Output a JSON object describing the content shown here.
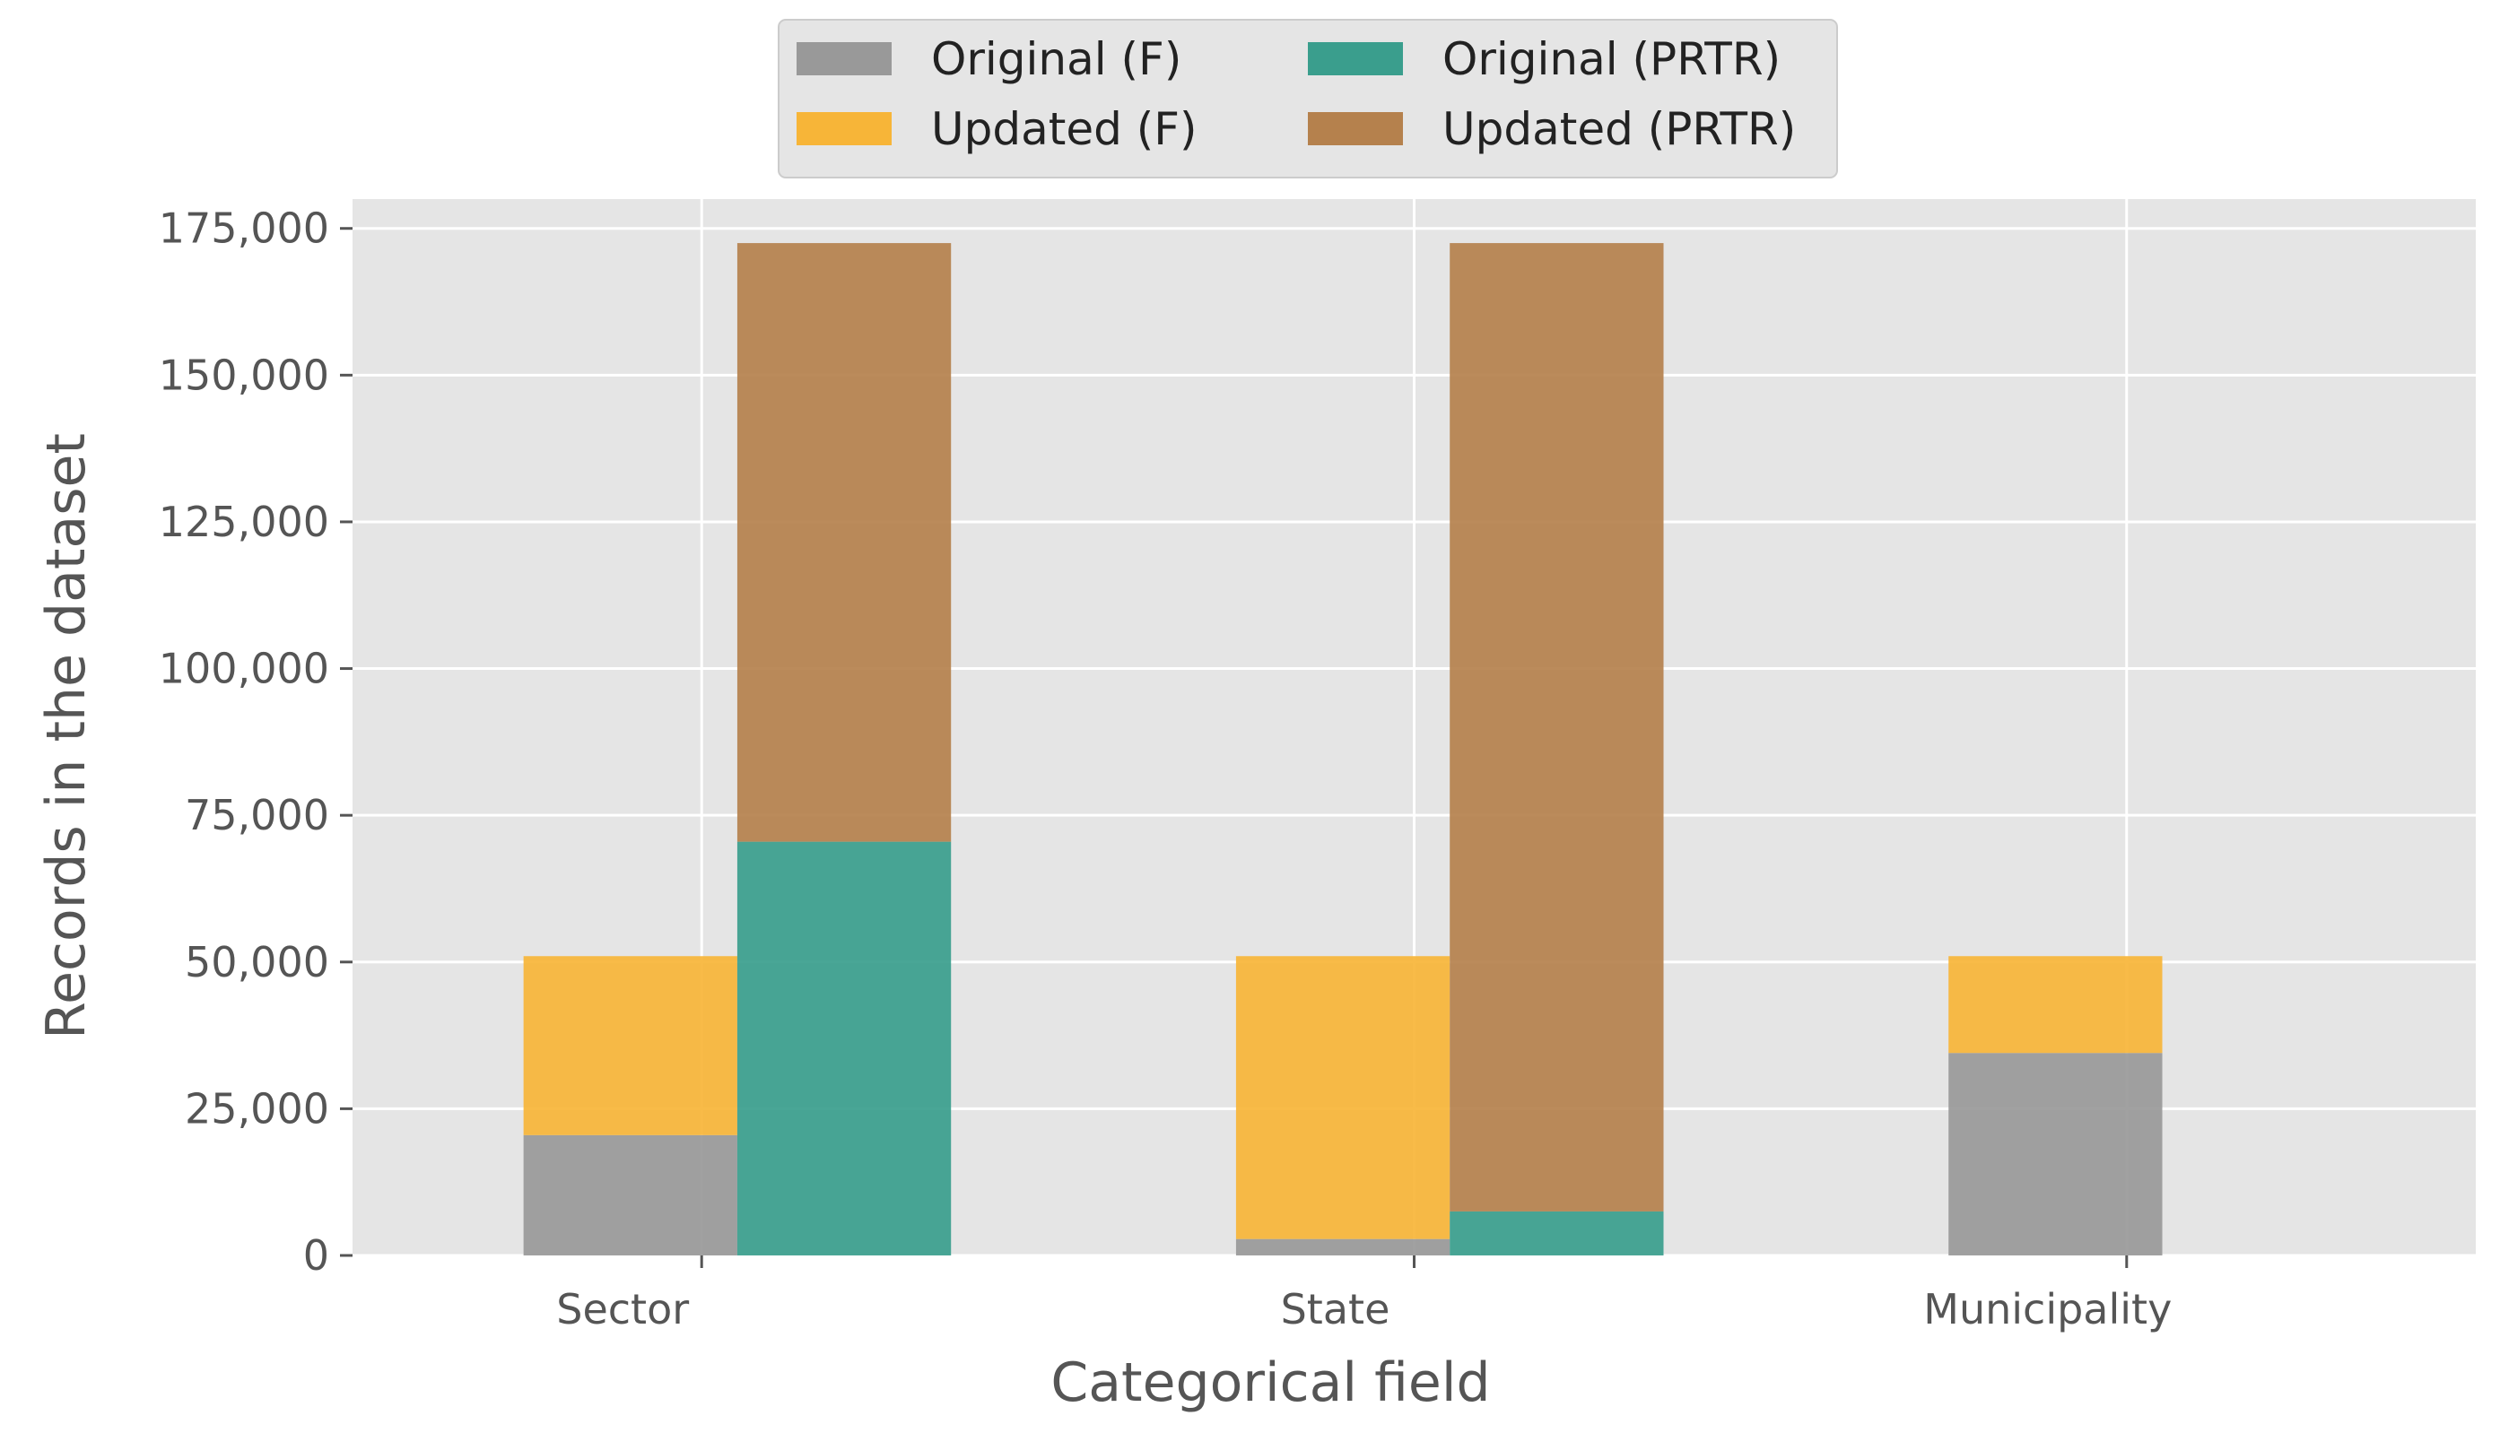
{
  "chart_data": {
    "type": "bar",
    "stacked": true,
    "xlabel": "Categorical field",
    "ylabel": "Records in the dataset",
    "ylim": [
      0,
      180000
    ],
    "yticks": [
      0,
      25000,
      50000,
      75000,
      100000,
      125000,
      150000,
      175000
    ],
    "ytick_labels": [
      "0",
      "25,000",
      "50,000",
      "75,000",
      "100,000",
      "125,000",
      "150,000",
      "175,000"
    ],
    "categories": [
      "Sector",
      "State",
      "Municipality"
    ],
    "groups": [
      {
        "id": "F",
        "series": [
          {
            "name": "Original (F)",
            "color": "#999999",
            "values": [
              20500,
              2800,
              34500
            ]
          },
          {
            "name": "Updated (F)",
            "color": "#F7B538",
            "values": [
              30500,
              48200,
              16500
            ]
          }
        ]
      },
      {
        "id": "PRTR",
        "series": [
          {
            "name": "Original (PRTR)",
            "color": "#3A9E8D",
            "values": [
              70500,
              7500,
              0
            ]
          },
          {
            "name": "Updated (PRTR)",
            "color": "#B5814D",
            "values": [
              102000,
              165000,
              0
            ]
          }
        ]
      }
    ],
    "legend": {
      "position": "top-center",
      "entries": [
        {
          "label": "Original (F)",
          "color": "#999999"
        },
        {
          "label": "Original (PRTR)",
          "color": "#3A9E8D"
        },
        {
          "label": "Updated (F)",
          "color": "#F7B538"
        },
        {
          "label": "Updated (PRTR)",
          "color": "#B5814D"
        }
      ]
    },
    "grid": true,
    "background": "#E5E5E5",
    "grid_color": "#FFFFFF"
  }
}
